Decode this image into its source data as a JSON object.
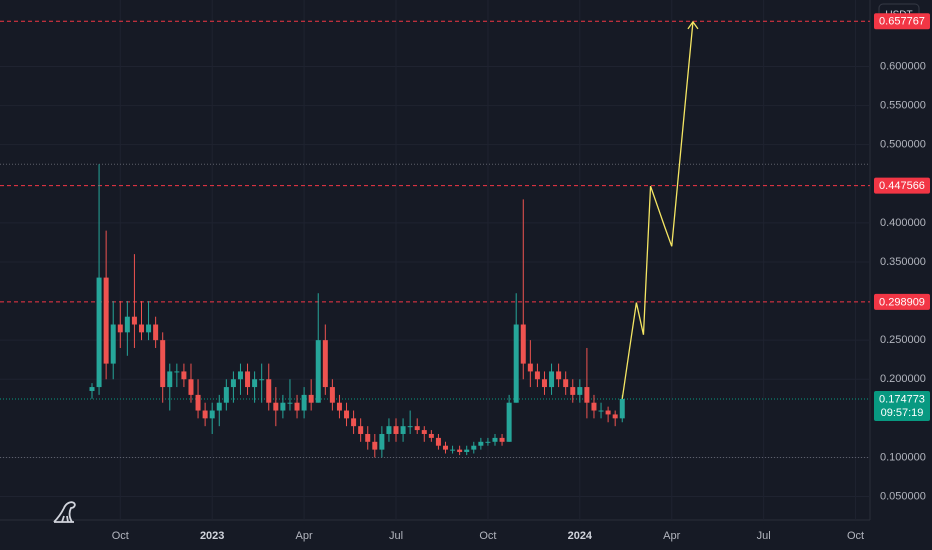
{
  "chart_data": {
    "type": "candlestick",
    "currency": "USDT",
    "up_color": "#26a69a",
    "down_color": "#ef5350",
    "grid": true,
    "ylim": [
      0.02,
      0.685
    ],
    "yticks": [
      {
        "value": 0.05,
        "label": "0.050000"
      },
      {
        "value": 0.1,
        "label": "0.100000"
      },
      {
        "value": 0.2,
        "label": "0.200000"
      },
      {
        "value": 0.25,
        "label": "0.250000"
      },
      {
        "value": 0.35,
        "label": "0.350000"
      },
      {
        "value": 0.4,
        "label": "0.400000"
      },
      {
        "value": 0.5,
        "label": "0.500000"
      },
      {
        "value": 0.55,
        "label": "0.550000"
      },
      {
        "value": 0.6,
        "label": "0.600000"
      }
    ],
    "categories": [
      null,
      null,
      null,
      null,
      "Oct",
      null,
      null,
      null,
      null,
      null,
      null,
      null,
      null,
      null,
      null,
      null,
      null,
      "2023",
      null,
      null,
      null,
      null,
      null,
      null,
      null,
      null,
      null,
      null,
      null,
      null,
      "Apr",
      null,
      null,
      null,
      null,
      null,
      null,
      null,
      null,
      null,
      null,
      null,
      null,
      "Jul",
      null,
      null,
      null,
      null,
      null,
      null,
      null,
      null,
      null,
      null,
      null,
      null,
      "Oct",
      null,
      null,
      null,
      null,
      null,
      null,
      null,
      null,
      null,
      null,
      null,
      null,
      "2024",
      null,
      null,
      null,
      null,
      null,
      null,
      null,
      null,
      null,
      null,
      null,
      null,
      "Apr",
      null,
      null,
      null,
      null,
      null,
      null,
      null,
      null,
      null,
      null,
      null,
      null,
      "Jul",
      null,
      null,
      null,
      null,
      null,
      null,
      null,
      null,
      null,
      null,
      null,
      null,
      "Oct"
    ],
    "open": [
      0.185,
      0.19,
      0.33,
      0.22,
      0.27,
      0.26,
      0.28,
      0.27,
      0.26,
      0.27,
      0.25,
      0.19,
      0.21,
      0.21,
      0.2,
      0.18,
      0.16,
      0.15,
      0.16,
      0.17,
      0.19,
      0.2,
      0.21,
      0.19,
      0.2,
      0.2,
      0.17,
      0.16,
      0.17,
      0.17,
      0.16,
      0.18,
      0.17,
      0.25,
      0.19,
      0.17,
      0.16,
      0.15,
      0.14,
      0.13,
      0.12,
      0.11,
      0.13,
      0.14,
      0.13,
      0.14,
      0.14,
      0.135,
      0.13,
      0.125,
      0.115,
      0.11,
      0.11,
      0.107,
      0.11,
      0.115,
      0.12,
      0.12,
      0.125,
      0.12,
      0.17,
      0.27,
      0.22,
      0.21,
      0.2,
      0.19,
      0.21,
      0.2,
      0.19,
      0.18,
      0.19,
      0.17,
      0.16,
      0.16,
      0.155,
      0.15,
      null,
      null,
      null,
      null,
      null,
      null,
      null,
      null,
      null,
      null,
      null,
      null,
      null,
      null,
      null,
      null,
      null,
      null,
      null,
      null,
      null,
      null,
      null,
      null,
      null,
      null,
      null,
      null,
      null,
      null,
      null,
      null,
      null
    ],
    "high": [
      0.195,
      0.475,
      0.39,
      0.3,
      0.3,
      0.3,
      0.36,
      0.3,
      0.3,
      0.28,
      0.26,
      0.22,
      0.22,
      0.22,
      0.22,
      0.2,
      0.17,
      0.17,
      0.18,
      0.2,
      0.21,
      0.22,
      0.22,
      0.21,
      0.22,
      0.22,
      0.19,
      0.18,
      0.2,
      0.18,
      0.19,
      0.2,
      0.31,
      0.27,
      0.2,
      0.18,
      0.17,
      0.16,
      0.15,
      0.14,
      0.13,
      0.14,
      0.15,
      0.15,
      0.15,
      0.16,
      0.15,
      0.14,
      0.135,
      0.13,
      0.12,
      0.115,
      0.115,
      0.115,
      0.12,
      0.125,
      0.125,
      0.13,
      0.13,
      0.18,
      0.31,
      0.43,
      0.25,
      0.22,
      0.21,
      0.22,
      0.22,
      0.21,
      0.2,
      0.2,
      0.24,
      0.18,
      0.17,
      0.165,
      0.16,
      0.18,
      null,
      null,
      null,
      null,
      null,
      null,
      null,
      null,
      null,
      null,
      null,
      null,
      null,
      null,
      null,
      null,
      null,
      null,
      null,
      null,
      null,
      null,
      null,
      null,
      null,
      null,
      null,
      null,
      null,
      null,
      null,
      null,
      null
    ],
    "low": [
      0.175,
      0.18,
      0.2,
      0.2,
      0.24,
      0.23,
      0.24,
      0.25,
      0.25,
      0.24,
      0.17,
      0.16,
      0.19,
      0.19,
      0.17,
      0.15,
      0.14,
      0.13,
      0.14,
      0.16,
      0.17,
      0.18,
      0.18,
      0.17,
      0.17,
      0.16,
      0.14,
      0.15,
      0.16,
      0.15,
      0.15,
      0.16,
      0.17,
      0.18,
      0.16,
      0.15,
      0.14,
      0.13,
      0.12,
      0.11,
      0.1,
      0.1,
      0.12,
      0.12,
      0.12,
      0.13,
      0.13,
      0.12,
      0.12,
      0.11,
      0.105,
      0.105,
      0.103,
      0.103,
      0.105,
      0.11,
      0.115,
      0.115,
      0.115,
      0.12,
      0.17,
      0.2,
      0.19,
      0.19,
      0.18,
      0.18,
      0.19,
      0.18,
      0.17,
      0.17,
      0.15,
      0.15,
      0.15,
      0.145,
      0.14,
      0.145,
      null,
      null,
      null,
      null,
      null,
      null,
      null,
      null,
      null,
      null,
      null,
      null,
      null,
      null,
      null,
      null,
      null,
      null,
      null,
      null,
      null,
      null,
      null,
      null,
      null,
      null,
      null,
      null,
      null,
      null,
      null,
      null,
      null
    ],
    "close": [
      0.19,
      0.33,
      0.22,
      0.27,
      0.26,
      0.28,
      0.27,
      0.26,
      0.27,
      0.25,
      0.19,
      0.21,
      0.21,
      0.2,
      0.18,
      0.16,
      0.15,
      0.16,
      0.17,
      0.19,
      0.2,
      0.21,
      0.19,
      0.2,
      0.2,
      0.17,
      0.16,
      0.17,
      0.17,
      0.16,
      0.18,
      0.17,
      0.25,
      0.19,
      0.17,
      0.16,
      0.15,
      0.14,
      0.13,
      0.12,
      0.11,
      0.13,
      0.14,
      0.13,
      0.14,
      0.14,
      0.135,
      0.13,
      0.125,
      0.115,
      0.11,
      0.11,
      0.107,
      0.11,
      0.115,
      0.12,
      0.12,
      0.125,
      0.12,
      0.17,
      0.27,
      0.22,
      0.21,
      0.2,
      0.19,
      0.21,
      0.2,
      0.19,
      0.18,
      0.19,
      0.17,
      0.16,
      0.16,
      0.155,
      0.15,
      0.174773,
      null,
      null,
      null,
      null,
      null,
      null,
      null,
      null,
      null,
      null,
      null,
      null,
      null,
      null,
      null,
      null,
      null,
      null,
      null,
      null,
      null,
      null,
      null,
      null,
      null,
      null,
      null,
      null,
      null,
      null,
      null,
      null,
      null
    ],
    "projection": {
      "color": "#f5e663",
      "values": [
        null,
        null,
        null,
        null,
        null,
        null,
        null,
        null,
        null,
        null,
        null,
        null,
        null,
        null,
        null,
        null,
        null,
        null,
        null,
        null,
        null,
        null,
        null,
        null,
        null,
        null,
        null,
        null,
        null,
        null,
        null,
        null,
        null,
        null,
        null,
        null,
        null,
        null,
        null,
        null,
        null,
        null,
        null,
        null,
        null,
        null,
        null,
        null,
        null,
        null,
        null,
        null,
        null,
        null,
        null,
        null,
        null,
        null,
        null,
        null,
        null,
        null,
        null,
        null,
        null,
        null,
        null,
        null,
        null,
        null,
        null,
        null,
        null,
        null,
        null,
        0.175,
        0.237,
        0.298,
        0.257,
        0.447,
        0.421,
        0.395,
        0.37,
        0.466,
        0.562,
        0.657,
        null,
        null,
        null,
        null,
        null,
        null,
        null,
        null,
        null,
        null,
        null,
        null,
        null,
        null,
        null,
        null,
        null,
        null,
        null,
        null,
        null,
        null,
        null
      ]
    },
    "levels": [
      0.657767,
      0.447566,
      0.298909
    ],
    "level_color": "#f23645",
    "hlines": [
      0.475,
      0.1
    ],
    "last_price": {
      "value": 0.174773,
      "countdown": "09:57:19",
      "color": "#089981"
    }
  }
}
